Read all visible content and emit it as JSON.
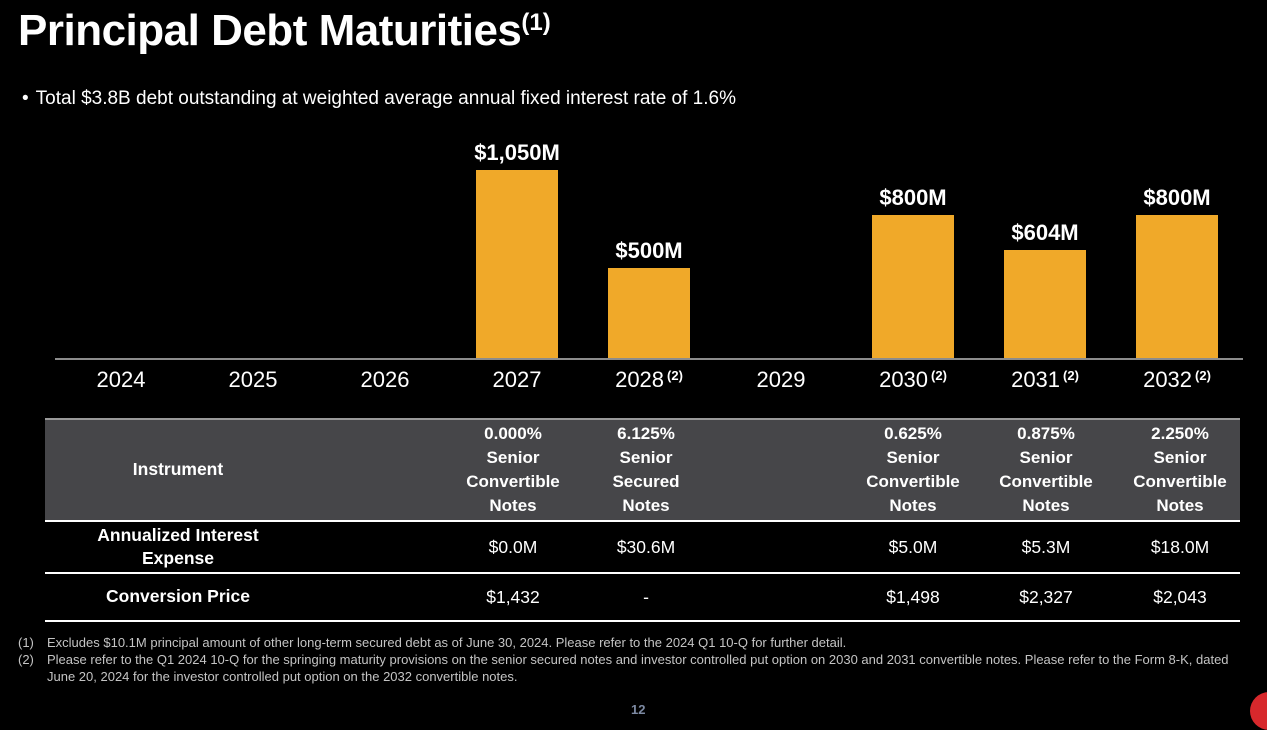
{
  "slide": {
    "title": "Principal Debt Maturities",
    "title_footnote_mark": "(1)",
    "bullet_marker": "•",
    "bullet_text": "Total $3.8B debt outstanding at weighted average annual fixed interest rate of 1.6%",
    "page_number": "12"
  },
  "colors": {
    "background": "#000000",
    "bar": "#F0A929",
    "table_header_background": "#464649",
    "axis_line": "#8C8C8C",
    "text": "#FFFFFF",
    "footnote_text": "#C4C4C4",
    "logo_red": "#D7282C"
  },
  "chart_data": {
    "type": "bar",
    "title": "",
    "xlabel": "",
    "ylabel": "",
    "unit": "$M",
    "categories": [
      "2024",
      "2025",
      "2026",
      "2027",
      "2028",
      "2029",
      "2030",
      "2031",
      "2032"
    ],
    "category_footnote_marks": [
      "",
      "",
      "",
      "",
      "(2)",
      "",
      "(2)",
      "(2)",
      "(2)"
    ],
    "values": [
      0,
      0,
      0,
      1050,
      500,
      0,
      800,
      604,
      800
    ],
    "bar_value_labels": [
      "",
      "",
      "",
      "$1,050M",
      "$500M",
      "",
      "$800M",
      "$604M",
      "$800M"
    ],
    "ylim": [
      0,
      1220
    ],
    "grid": false,
    "legend_position": "none",
    "bar_color": "#F0A929"
  },
  "table": {
    "header_label": "Instrument",
    "row_labels": [
      "Annualized Interest\nExpense",
      "Conversion Price"
    ],
    "columns": [
      {
        "year": "2027",
        "instrument": "0.000%\nSenior\nConvertible\nNotes",
        "annualized_interest_expense": "$0.0M",
        "conversion_price": "$1,432"
      },
      {
        "year": "2028",
        "instrument": "6.125%\nSenior\nSecured\nNotes",
        "annualized_interest_expense": "$30.6M",
        "conversion_price": "-"
      },
      {
        "year": "2030",
        "instrument": "0.625%\nSenior\nConvertible\nNotes",
        "annualized_interest_expense": "$5.0M",
        "conversion_price": "$1,498"
      },
      {
        "year": "2031",
        "instrument": "0.875%\nSenior\nConvertible\nNotes",
        "annualized_interest_expense": "$5.3M",
        "conversion_price": "$2,327"
      },
      {
        "year": "2032",
        "instrument": "2.250%\nSenior\nConvertible\nNotes",
        "annualized_interest_expense": "$18.0M",
        "conversion_price": "$2,043"
      }
    ]
  },
  "footnotes": [
    {
      "number": "(1)",
      "text": "Excludes $10.1M principal amount of other long-term secured debt as of June 30, 2024. Please refer to the 2024 Q1 10-Q for further detail."
    },
    {
      "number": "(2)",
      "text": "Please refer to the Q1 2024 10-Q for the springing maturity provisions on the senior secured notes and investor controlled put option on 2030 and 2031 convertible notes. Please refer to the Form 8-K, dated June 20, 2024 for the investor controlled put option on the 2032 convertible notes."
    }
  ]
}
